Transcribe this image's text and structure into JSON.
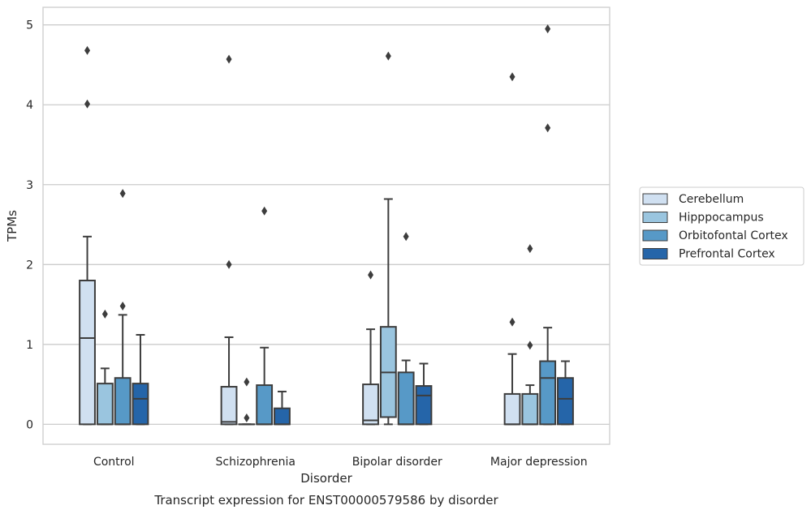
{
  "chart_data": {
    "type": "boxplot",
    "title": "",
    "caption": "Transcript expression for ENST00000579586 by disorder",
    "xlabel": "Disorder",
    "ylabel": "TPMs",
    "ylim": [
      -0.25,
      5.22
    ],
    "yticks": [
      0,
      1,
      2,
      3,
      4,
      5
    ],
    "grid": "horizontal",
    "legend_position": "right",
    "categories": [
      "Control",
      "Schizophrenia",
      "Bipolar disorder",
      "Major depression"
    ],
    "series": [
      {
        "name": "Cerebellum",
        "color": "#d0e0f1",
        "boxes": [
          {
            "whisker_low": 0,
            "q1": 0,
            "median": 1.08,
            "q3": 1.8,
            "whisker_high": 2.35,
            "outliers": [
              4.68,
              4.01
            ]
          },
          {
            "whisker_low": 0,
            "q1": 0,
            "median": 0.03,
            "q3": 0.47,
            "whisker_high": 1.09,
            "outliers": [
              4.57,
              2.0
            ]
          },
          {
            "whisker_low": 0,
            "q1": 0,
            "median": 0.05,
            "q3": 0.5,
            "whisker_high": 1.19,
            "outliers": [
              1.87
            ]
          },
          {
            "whisker_low": 0,
            "q1": 0,
            "median": 0,
            "q3": 0.38,
            "whisker_high": 0.88,
            "outliers": [
              4.35,
              1.28
            ]
          }
        ]
      },
      {
        "name": "Hipppocampus",
        "color": "#9ac5df",
        "boxes": [
          {
            "whisker_low": 0,
            "q1": 0,
            "median": 0,
            "q3": 0.51,
            "whisker_high": 0.7,
            "outliers": [
              1.38
            ]
          },
          {
            "whisker_low": 0,
            "q1": 0,
            "median": 0,
            "q3": 0,
            "whisker_high": 0,
            "outliers": [
              0.53,
              0.08
            ]
          },
          {
            "whisker_low": 0,
            "q1": 0.09,
            "median": 0.65,
            "q3": 1.22,
            "whisker_high": 2.82,
            "outliers": [
              4.61
            ]
          },
          {
            "whisker_low": 0,
            "q1": 0,
            "median": 0,
            "q3": 0.38,
            "whisker_high": 0.49,
            "outliers": [
              2.2,
              0.99
            ]
          }
        ]
      },
      {
        "name": "Orbitofontal Cortex",
        "color": "#5799c7",
        "boxes": [
          {
            "whisker_low": 0,
            "q1": 0,
            "median": 0,
            "q3": 0.58,
            "whisker_high": 1.37,
            "outliers": [
              2.89,
              1.48
            ]
          },
          {
            "whisker_low": 0,
            "q1": 0,
            "median": 0,
            "q3": 0.49,
            "whisker_high": 0.96,
            "outliers": [
              2.67
            ]
          },
          {
            "whisker_low": 0,
            "q1": 0,
            "median": 0,
            "q3": 0.65,
            "whisker_high": 0.8,
            "outliers": [
              2.35
            ]
          },
          {
            "whisker_low": 0,
            "q1": 0,
            "median": 0.58,
            "q3": 0.79,
            "whisker_high": 1.21,
            "outliers": [
              4.95,
              3.71
            ]
          }
        ]
      },
      {
        "name": "Prefrontal Cortex",
        "color": "#2565a9",
        "boxes": [
          {
            "whisker_low": 0,
            "q1": 0,
            "median": 0.32,
            "q3": 0.51,
            "whisker_high": 1.12,
            "outliers": []
          },
          {
            "whisker_low": 0,
            "q1": 0,
            "median": 0,
            "q3": 0.2,
            "whisker_high": 0.41,
            "outliers": []
          },
          {
            "whisker_low": 0,
            "q1": 0,
            "median": 0.36,
            "q3": 0.48,
            "whisker_high": 0.76,
            "outliers": []
          },
          {
            "whisker_low": 0,
            "q1": 0,
            "median": 0.32,
            "q3": 0.58,
            "whisker_high": 0.79,
            "outliers": []
          }
        ]
      }
    ]
  }
}
